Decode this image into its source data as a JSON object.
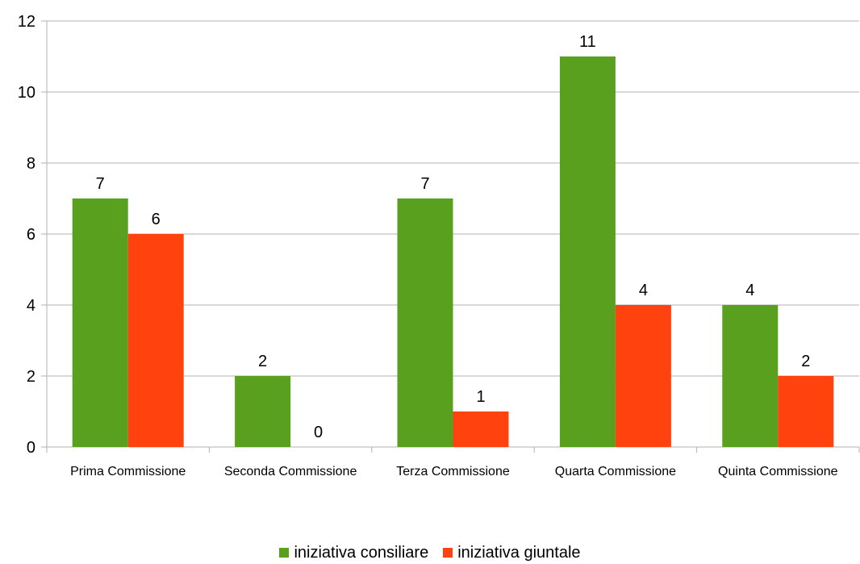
{
  "chart_data": {
    "type": "bar",
    "categories": [
      "Prima Commissione",
      "Seconda Commissione",
      "Terza Commissione",
      "Quarta Commissione",
      "Quinta Commissione"
    ],
    "series": [
      {
        "name": "iniziativa consiliare",
        "values": [
          7,
          2,
          7,
          11,
          4
        ],
        "color": "#59A01E"
      },
      {
        "name": "iniziativa giuntale",
        "values": [
          6,
          0,
          1,
          4,
          2
        ],
        "color": "#FF420E"
      }
    ],
    "yticks": [
      0,
      2,
      4,
      6,
      8,
      10,
      12
    ],
    "ylim": [
      0,
      12
    ],
    "grid": true,
    "legend_position": "bottom",
    "data_labels": true
  }
}
